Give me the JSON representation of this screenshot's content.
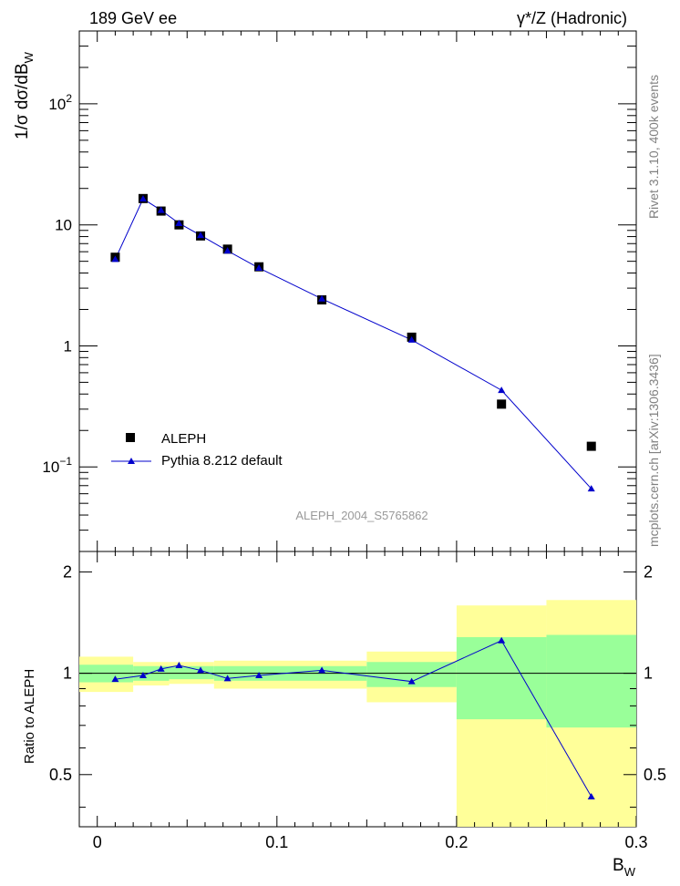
{
  "header": {
    "left": "189 GeV ee",
    "right": "γ*/Z (Hadronic)"
  },
  "side": {
    "rivet": "Rivet 3.1.10,  400k events",
    "mcplots": "mcplots.cern.ch [arXiv:1306.3436]"
  },
  "analysis_label": "ALEPH_2004_S5765862",
  "axis": {
    "ylabel_main": "1/σ  dσ/dB",
    "ylabel_main_sub": "W",
    "ylabel_ratio": "Ratio to ALEPH",
    "xlabel": "B",
    "xlabel_sub": "W"
  },
  "legend": {
    "data_label": "ALEPH",
    "mc_label": "Pythia 8.212 default"
  },
  "colors": {
    "data_marker": "#000000",
    "mc_line": "#0000cc",
    "band_inner": "#99ff99",
    "band_outer": "#ffff99"
  },
  "chart_data": [
    {
      "type": "scatter",
      "panel": "main",
      "yscale": "log",
      "xlim": [
        -0.01,
        0.3
      ],
      "ylim": [
        0.02,
        400
      ],
      "yticks": [
        {
          "value": 0.1,
          "base": "10",
          "exp": "−1"
        },
        {
          "value": 1,
          "label": "1"
        },
        {
          "value": 10,
          "label": "10"
        },
        {
          "value": 100,
          "base": "10",
          "exp": "2"
        }
      ],
      "series": [
        {
          "name": "ALEPH",
          "kind": "data",
          "x": [
            0.01,
            0.0255,
            0.0355,
            0.0455,
            0.0575,
            0.0725,
            0.09,
            0.125,
            0.175,
            0.225,
            0.275
          ],
          "y": [
            5.4,
            16.5,
            13.0,
            10.0,
            8.1,
            6.3,
            4.5,
            2.4,
            1.18,
            0.33,
            0.148
          ]
        },
        {
          "name": "Pythia 8.212 default",
          "kind": "mc",
          "x": [
            0.01,
            0.0255,
            0.0355,
            0.0455,
            0.0575,
            0.0725,
            0.09,
            0.125,
            0.175,
            0.225,
            0.275
          ],
          "y": [
            5.2,
            16.4,
            13.2,
            10.3,
            8.2,
            6.1,
            4.4,
            2.45,
            1.12,
            0.43,
            0.066
          ]
        }
      ]
    },
    {
      "type": "line",
      "panel": "ratio",
      "xlim": [
        -0.01,
        0.3
      ],
      "ylim": [
        0.35,
        2.3
      ],
      "xticks": [
        0,
        0.1,
        0.2,
        0.3
      ],
      "yticks": [
        0.5,
        1,
        2
      ],
      "bands": [
        {
          "x0": -0.01,
          "x1": 0.02,
          "inner": [
            0.94,
            1.06
          ],
          "outer": [
            0.88,
            1.12
          ]
        },
        {
          "x0": 0.02,
          "x1": 0.04,
          "inner": [
            0.95,
            1.05
          ],
          "outer": [
            0.92,
            1.08
          ]
        },
        {
          "x0": 0.04,
          "x1": 0.065,
          "inner": [
            0.96,
            1.05
          ],
          "outer": [
            0.93,
            1.08
          ]
        },
        {
          "x0": 0.065,
          "x1": 0.15,
          "inner": [
            0.95,
            1.05
          ],
          "outer": [
            0.9,
            1.09
          ]
        },
        {
          "x0": 0.15,
          "x1": 0.2,
          "inner": [
            0.91,
            1.08
          ],
          "outer": [
            0.82,
            1.16
          ]
        },
        {
          "x0": 0.2,
          "x1": 0.25,
          "inner": [
            0.73,
            1.28
          ],
          "outer": [
            0.35,
            1.59
          ]
        },
        {
          "x0": 0.25,
          "x1": 0.3,
          "inner": [
            0.69,
            1.3
          ],
          "outer": [
            0.35,
            1.65
          ]
        }
      ],
      "series": [
        {
          "name": "Pythia 8.212 default",
          "x": [
            0.01,
            0.0255,
            0.0355,
            0.0455,
            0.0575,
            0.0725,
            0.09,
            0.125,
            0.175,
            0.225,
            0.275
          ],
          "y": [
            0.96,
            0.985,
            1.03,
            1.055,
            1.02,
            0.965,
            0.985,
            1.02,
            0.945,
            1.25,
            0.43
          ]
        }
      ]
    }
  ]
}
